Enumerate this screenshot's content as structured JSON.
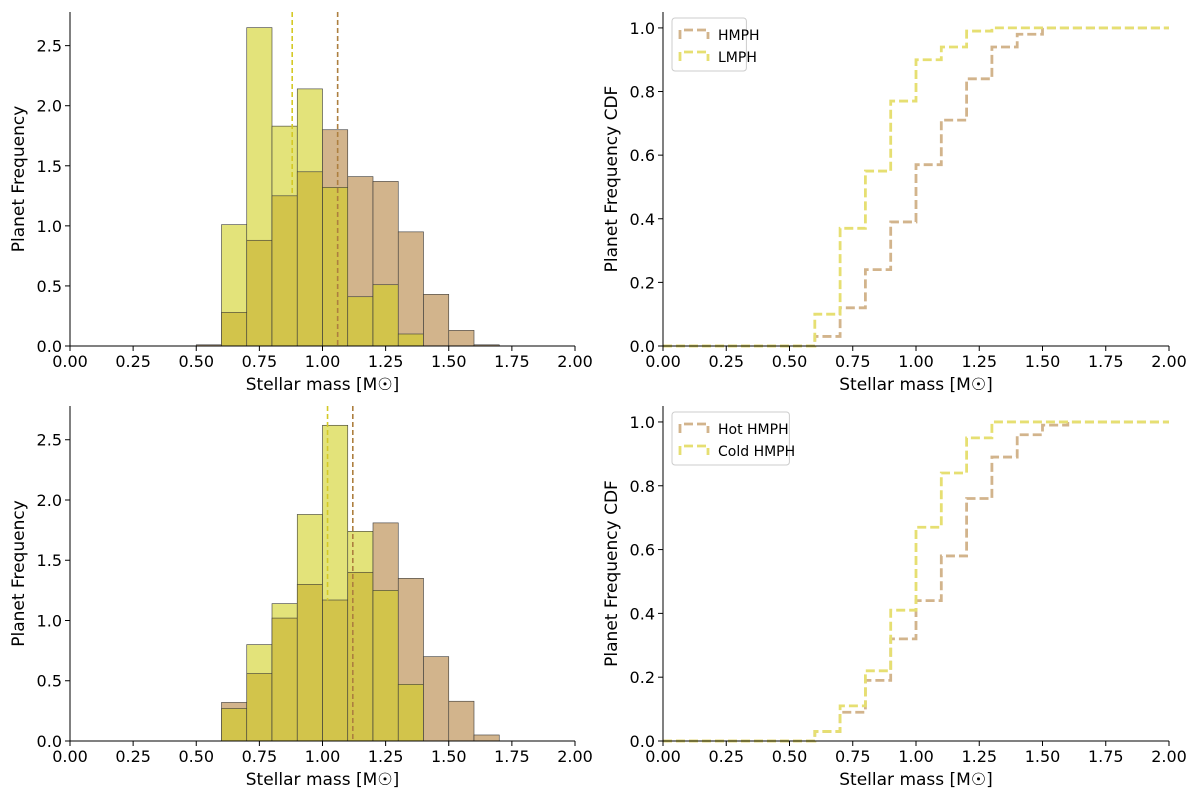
{
  "figure": {
    "layout": "2x2 grid"
  },
  "colors": {
    "tan": "#d2b48c",
    "tan_line": "#ad7f3f",
    "yellow": "#e3e37a",
    "yellow_line": "#d4c926",
    "overlap": "#d2c44b",
    "legend_yellow": "#e6df72"
  },
  "chart_data": [
    {
      "type": "bar",
      "panel": "top-left",
      "title": "",
      "xlabel": "Stellar mass [M☉]",
      "ylabel": "Planet Frequency",
      "xlim": [
        0,
        2.0
      ],
      "ylim": [
        0,
        2.78
      ],
      "xticks": [
        "0.00",
        "0.25",
        "0.50",
        "0.75",
        "1.00",
        "1.25",
        "1.50",
        "1.75",
        "2.00"
      ],
      "yticks": [
        "0.0",
        "0.5",
        "1.0",
        "1.5",
        "2.0",
        "2.5"
      ],
      "bin_edges": [
        0.5,
        0.6,
        0.7,
        0.8,
        0.9,
        1.0,
        1.1,
        1.2,
        1.3,
        1.4,
        1.5,
        1.6,
        1.7
      ],
      "series": [
        {
          "name": "HMPH",
          "color": "tan",
          "values": [
            0.01,
            0.28,
            0.88,
            1.25,
            1.45,
            1.8,
            1.41,
            1.37,
            0.95,
            0.43,
            0.13,
            0.01
          ]
        },
        {
          "name": "LMPH",
          "color": "yellow",
          "values": [
            0.0,
            1.01,
            2.65,
            1.83,
            2.14,
            1.32,
            0.41,
            0.51,
            0.1,
            0.0,
            0.0,
            0.0
          ]
        }
      ],
      "vlines": [
        {
          "x": 0.88,
          "color": "yellow_line",
          "ymin_frac": 0.45
        },
        {
          "x": 1.06,
          "color": "tan_line",
          "ymin_frac": 0.0
        }
      ]
    },
    {
      "type": "line",
      "panel": "top-right",
      "title": "",
      "xlabel": "Stellar mass [M☉]",
      "ylabel": "Planet Frequency CDF",
      "xlim": [
        0,
        2.0
      ],
      "ylim": [
        0,
        1.05
      ],
      "xticks": [
        "0.00",
        "0.25",
        "0.50",
        "0.75",
        "1.00",
        "1.25",
        "1.50",
        "1.75",
        "2.00"
      ],
      "yticks": [
        "0.0",
        "0.2",
        "0.4",
        "0.6",
        "0.8",
        "1.0"
      ],
      "legend_position": "top-left",
      "bin_edges": [
        0,
        0.1,
        0.2,
        0.3,
        0.4,
        0.5,
        0.6,
        0.7,
        0.8,
        0.9,
        1.0,
        1.1,
        1.2,
        1.3,
        1.4,
        1.5,
        1.6,
        1.7,
        1.8,
        1.9,
        2.0
      ],
      "series": [
        {
          "name": "HMPH",
          "color": "tan",
          "values": [
            0,
            0,
            0,
            0,
            0,
            0,
            0.03,
            0.12,
            0.24,
            0.39,
            0.57,
            0.71,
            0.84,
            0.94,
            0.98,
            1.0,
            1.0,
            1.0,
            1.0,
            1.0
          ]
        },
        {
          "name": "LMPH",
          "color": "yellow",
          "values": [
            0,
            0,
            0,
            0,
            0,
            0,
            0.1,
            0.37,
            0.55,
            0.77,
            0.9,
            0.94,
            0.99,
            1.0,
            1.0,
            1.0,
            1.0,
            1.0,
            1.0,
            1.0
          ]
        }
      ]
    },
    {
      "type": "bar",
      "panel": "bottom-left",
      "title": "",
      "xlabel": "Stellar mass [M☉]",
      "ylabel": "Planet Frequency",
      "xlim": [
        0,
        2.0
      ],
      "ylim": [
        0,
        2.78
      ],
      "xticks": [
        "0.00",
        "0.25",
        "0.50",
        "0.75",
        "1.00",
        "1.25",
        "1.50",
        "1.75",
        "2.00"
      ],
      "yticks": [
        "0.0",
        "0.5",
        "1.0",
        "1.5",
        "2.0",
        "2.5"
      ],
      "bin_edges": [
        0.6,
        0.7,
        0.8,
        0.9,
        1.0,
        1.1,
        1.2,
        1.3,
        1.4,
        1.5,
        1.6,
        1.7
      ],
      "series": [
        {
          "name": "Hot HMPH",
          "color": "tan",
          "values": [
            0.32,
            0.56,
            1.02,
            1.3,
            1.17,
            1.4,
            1.81,
            1.35,
            0.7,
            0.33,
            0.05
          ]
        },
        {
          "name": "Cold HMPH",
          "color": "yellow",
          "values": [
            0.27,
            0.8,
            1.14,
            1.88,
            2.62,
            1.74,
            1.25,
            0.47,
            0.0,
            0.0,
            0.0
          ]
        }
      ],
      "vlines": [
        {
          "x": 1.02,
          "color": "yellow_line",
          "ymin_frac": 0.42
        },
        {
          "x": 1.12,
          "color": "tan_line",
          "ymin_frac": 0.0
        }
      ]
    },
    {
      "type": "line",
      "panel": "bottom-right",
      "title": "",
      "xlabel": "Stellar mass [M☉]",
      "ylabel": "Planet Frequency CDF",
      "xlim": [
        0,
        2.0
      ],
      "ylim": [
        0,
        1.05
      ],
      "xticks": [
        "0.00",
        "0.25",
        "0.50",
        "0.75",
        "1.00",
        "1.25",
        "1.50",
        "1.75",
        "2.00"
      ],
      "yticks": [
        "0.0",
        "0.2",
        "0.4",
        "0.6",
        "0.8",
        "1.0"
      ],
      "legend_position": "top-left",
      "bin_edges": [
        0,
        0.1,
        0.2,
        0.3,
        0.4,
        0.5,
        0.6,
        0.7,
        0.8,
        0.9,
        1.0,
        1.1,
        1.2,
        1.3,
        1.4,
        1.5,
        1.6,
        1.7,
        1.8,
        1.9,
        2.0
      ],
      "series": [
        {
          "name": "Hot HMPH",
          "color": "tan",
          "values": [
            0,
            0,
            0,
            0,
            0,
            0,
            0.03,
            0.09,
            0.19,
            0.32,
            0.44,
            0.58,
            0.76,
            0.89,
            0.96,
            0.99,
            1.0,
            1.0,
            1.0,
            1.0
          ]
        },
        {
          "name": "Cold HMPH",
          "color": "yellow",
          "values": [
            0,
            0,
            0,
            0,
            0,
            0,
            0.03,
            0.11,
            0.22,
            0.41,
            0.67,
            0.84,
            0.95,
            1.0,
            1.0,
            1.0,
            1.0,
            1.0,
            1.0,
            1.0
          ]
        }
      ]
    }
  ]
}
